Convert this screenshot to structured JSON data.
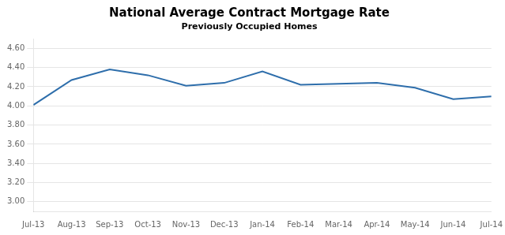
{
  "chart_data": {
    "type": "line",
    "title": "National Average Contract Mortgage Rate",
    "subtitle": "Previously Occupied Homes",
    "categories": [
      "Jul-13",
      "Aug-13",
      "Sep-13",
      "Oct-13",
      "Nov-13",
      "Dec-13",
      "Jan-14",
      "Feb-14",
      "Mar-14",
      "Apr-14",
      "May-14",
      "Jun-14",
      "Jul-14"
    ],
    "values": [
      4.01,
      4.27,
      4.38,
      4.32,
      4.21,
      4.24,
      4.36,
      4.22,
      4.23,
      4.24,
      4.19,
      4.07,
      4.1
    ],
    "color": "#2E6EAB",
    "ylim": [
      2.9,
      4.7
    ],
    "yticks": [
      {
        "value": 3.0,
        "label": "3.00"
      },
      {
        "value": 3.2,
        "label": "3.20"
      },
      {
        "value": 3.4,
        "label": "3.40"
      },
      {
        "value": 3.6,
        "label": "3.60"
      },
      {
        "value": 3.8,
        "label": "3.80"
      },
      {
        "value": 4.0,
        "label": "4.00"
      },
      {
        "value": 4.2,
        "label": "4.20"
      },
      {
        "value": 4.4,
        "label": "4.40"
      },
      {
        "value": 4.6,
        "label": "4.60"
      }
    ],
    "grid": true
  }
}
